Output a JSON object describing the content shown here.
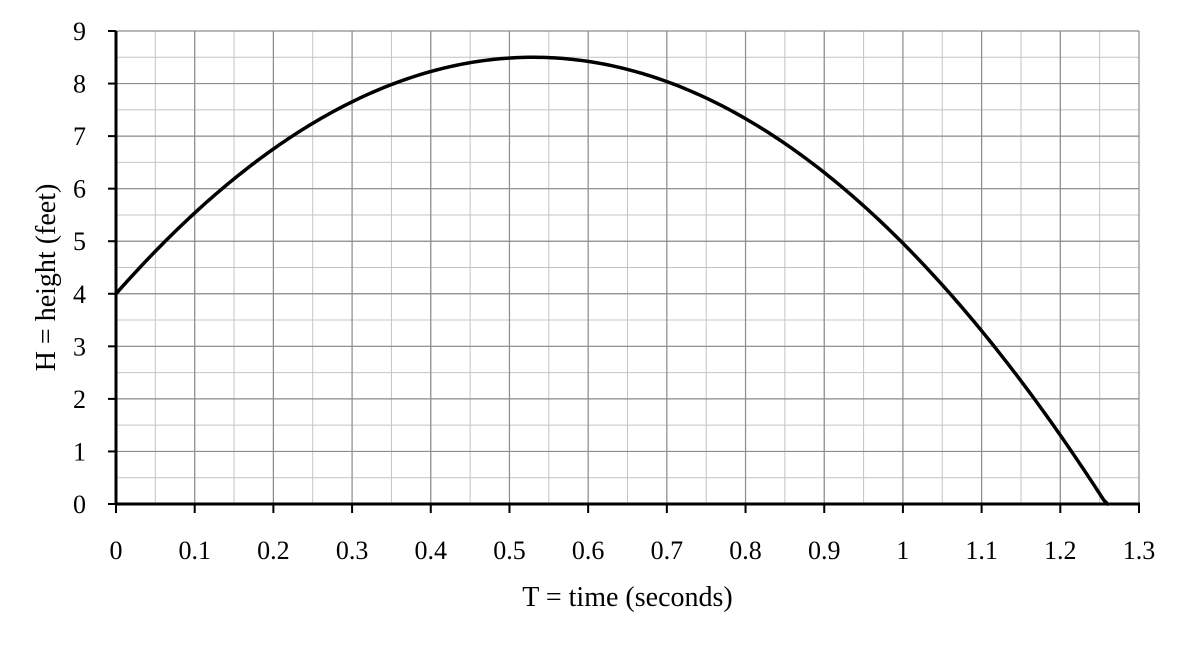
{
  "chart_data": {
    "type": "line",
    "title": "",
    "xlabel": "T = time (seconds)",
    "ylabel": "H = height (feet)",
    "xlim": [
      0,
      1.3
    ],
    "ylim": [
      0,
      9
    ],
    "x_ticks": [
      "0",
      "0.1",
      "0.2",
      "0.3",
      "0.4",
      "0.5",
      "0.6",
      "0.7",
      "0.8",
      "0.9",
      "1",
      "1.1",
      "1.2",
      "1.3"
    ],
    "y_ticks": [
      "0",
      "1",
      "2",
      "3",
      "4",
      "5",
      "6",
      "7",
      "8",
      "9"
    ],
    "x_tick_values": [
      0,
      0.1,
      0.2,
      0.3,
      0.4,
      0.5,
      0.6,
      0.7,
      0.8,
      0.9,
      1.0,
      1.1,
      1.2,
      1.3
    ],
    "y_tick_values": [
      0,
      1,
      2,
      3,
      4,
      5,
      6,
      7,
      8,
      9
    ],
    "grid": true,
    "minor_grid": {
      "x_step": 0.05,
      "y_step": 0.5
    },
    "legend": "none",
    "colors": {
      "curve": "#000000",
      "axis": "#000000",
      "grid_major": "#8c8c8c",
      "grid_minor": "#c4c4c4"
    },
    "series": [
      {
        "x": [
          0,
          0.05,
          0.1,
          0.15,
          0.2,
          0.25,
          0.3,
          0.35,
          0.4,
          0.45,
          0.5,
          0.53,
          0.55,
          0.6,
          0.65,
          0.7,
          0.75,
          0.8,
          0.85,
          0.9,
          0.95,
          1.0,
          1.05,
          1.1,
          1.15,
          1.2,
          1.25,
          1.26
        ],
        "y": [
          4.0,
          4.76,
          5.44,
          6.04,
          6.56,
          7.0,
          7.36,
          7.64,
          7.84,
          7.96,
          8.0,
          8.5,
          8.49,
          8.42,
          8.28,
          8.08,
          7.8,
          7.44,
          7.0,
          6.48,
          5.88,
          5.2,
          4.44,
          3.6,
          2.68,
          1.68,
          0.6,
          0.0
        ]
      }
    ]
  }
}
